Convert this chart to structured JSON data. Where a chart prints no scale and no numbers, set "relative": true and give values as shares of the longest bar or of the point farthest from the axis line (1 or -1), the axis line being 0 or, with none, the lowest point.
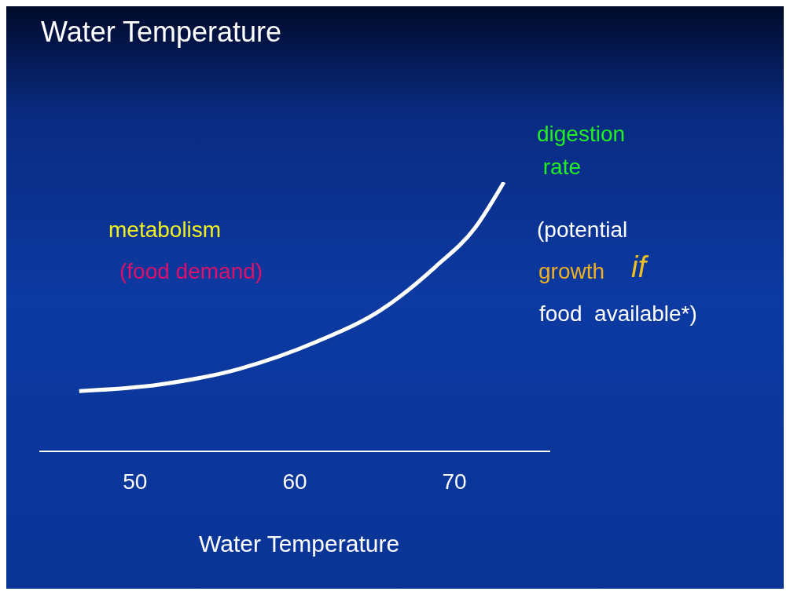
{
  "chart_data": {
    "type": "line",
    "title": "Water Temperature",
    "xlabel": "Water Temperature",
    "relative": true,
    "xlim": [
      44,
      76
    ],
    "xticks": [
      50,
      60,
      70
    ],
    "marker": "none",
    "line_style": "solid",
    "series": [
      {
        "color": "#ffffff",
        "x": [
          46.5,
          51.5,
          56.5,
          61.4,
          65.4,
          68.8,
          71.3,
          73.1
        ],
        "values": [
          0.224,
          0.248,
          0.306,
          0.408,
          0.525,
          0.685,
          0.831,
          1
        ]
      }
    ],
    "annotations": [
      "digestion\n rate",
      "metabolism",
      "(food demand)",
      "(potential",
      "growth",
      "if",
      "food  available*)"
    ]
  }
}
